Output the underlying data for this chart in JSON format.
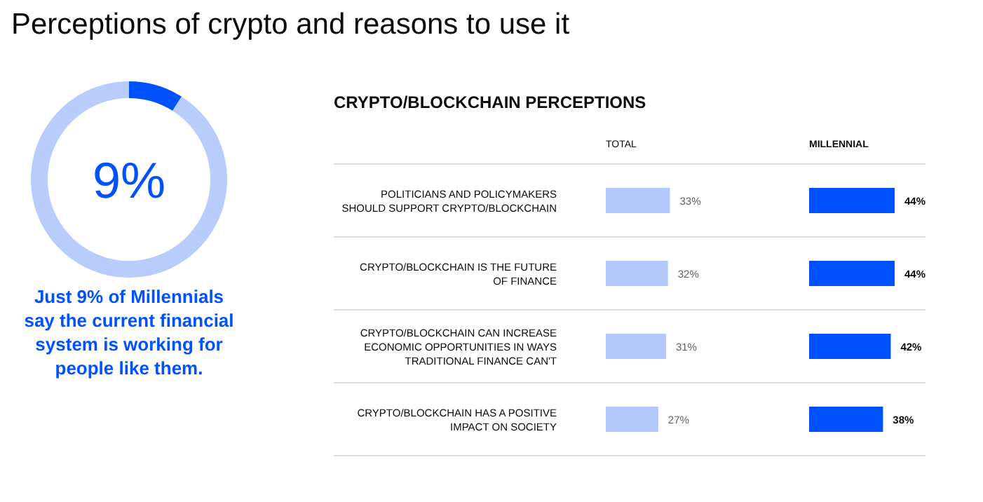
{
  "chart_data": [
    {
      "type": "donut",
      "title": "Perceptions of crypto and reasons to use it",
      "categories": [
        null,
        null
      ],
      "values": [
        9,
        91
      ],
      "colors": [
        "#0052ff",
        "#b8cdfb"
      ],
      "annotations": [
        "9%",
        "Just 9% of Millennials say the current financial system is working for people like them."
      ]
    },
    {
      "type": "bar",
      "orientation": "horizontal",
      "title": "CRYPTO/BLOCKCHAIN PERCEPTIONS",
      "categories": [
        "POLITICIANS AND POLICYMAKERS SHOULD SUPPORT CRYPTO/BLOCKCHAIN",
        "CRYPTO/BLOCKCHAIN IS THE FUTURE OF FINANCE",
        "CRYPTO/BLOCKCHAIN CAN INCREASE ECONOMIC OPPORTUNITIES IN WAYS TRADITIONAL FINANCE CAN'T",
        "CRYPTO/BLOCKCHAIN HAS A POSITIVE IMPACT ON SOCIETY"
      ],
      "series": [
        {
          "name": "TOTAL",
          "color": "#b3c9fb",
          "values": [
            33,
            32,
            31,
            27
          ],
          "value_labels": [
            "33%",
            "32%",
            "31%",
            "27%"
          ]
        }
      ]
    },
    {
      "type": "bar",
      "orientation": "horizontal",
      "categories": [
        null,
        null,
        null,
        null
      ],
      "series": [
        {
          "name": "MILLENNIAL",
          "color": "#0052ff",
          "values": [
            44,
            44,
            42,
            38
          ],
          "value_labels": [
            "44%",
            "44%",
            "42%",
            "38%"
          ]
        }
      ]
    }
  ]
}
